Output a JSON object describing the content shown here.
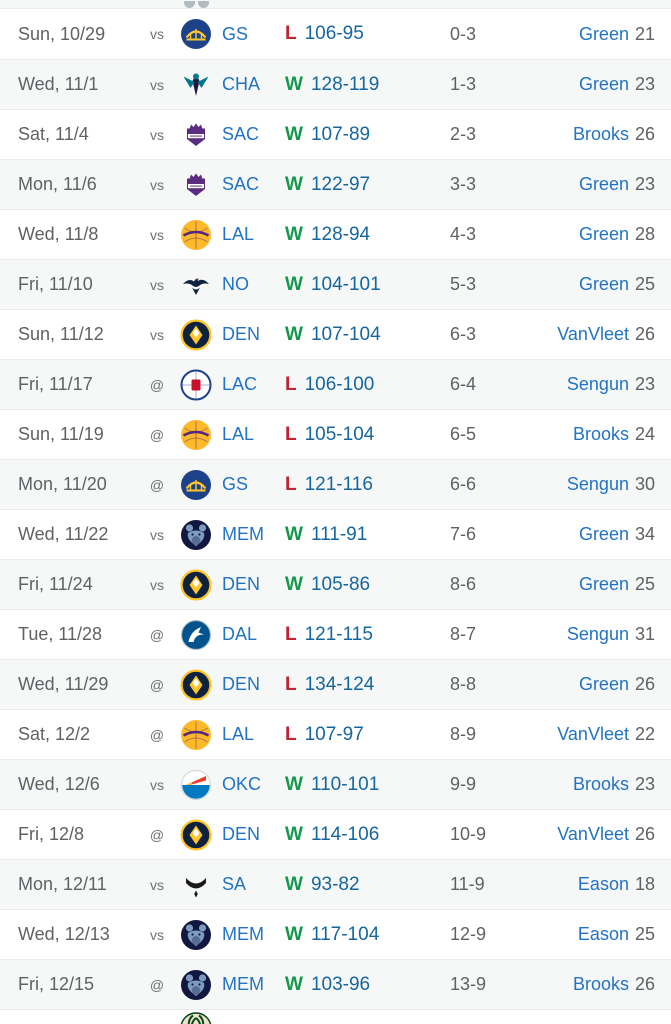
{
  "page": {
    "description": "NBA team schedule results table",
    "home_away_labels": {
      "home": "vs",
      "away": "@"
    }
  },
  "colors": {
    "link_blue": "#2273c4",
    "score_blue": "#15669e",
    "win_green": "#12994c",
    "loss_red": "#bf2431",
    "text_gray": "#5f6164",
    "muted_gray": "#6e7073",
    "row_alt_bg": "#f6f7f7",
    "row_border": "#e9eaeb"
  },
  "team_colors": {
    "warriors": {
      "primary": "#1d428a",
      "secondary": "#ffc72c"
    },
    "hornets": {
      "primary": "#00788c",
      "secondary": "#201747"
    },
    "kings": {
      "primary": "#5a2d81",
      "secondary": "#ffffff"
    },
    "lakers": {
      "primary": "#fdb927",
      "secondary": "#552583"
    },
    "pelicans": {
      "primary": "#0c2340",
      "secondary": "#c8102e"
    },
    "nuggets": {
      "primary": "#0e2240",
      "secondary": "#fec524"
    },
    "clippers": {
      "primary": "#c8102e",
      "secondary": "#1d428a"
    },
    "grizzlies": {
      "primary": "#12173f",
      "secondary": "#7d9bc1"
    },
    "mavericks": {
      "primary": "#00538c",
      "secondary": "#ffffff"
    },
    "thunder": {
      "primary": "#007ac1",
      "secondary": "#ef3b24"
    },
    "spurs": {
      "primary": "#1a1a1a",
      "secondary": "#c4ced4"
    },
    "bucks": {
      "primary": "#00471b",
      "secondary": "#eee1c6"
    }
  },
  "partial_bottom": {
    "logo": "bucks",
    "icon": "bucks-logo"
  },
  "games": [
    {
      "date": "Sun, 10/29",
      "home_away": "vs",
      "opponent": "GS",
      "logo": "warriors",
      "result": "L",
      "score": "106-95",
      "record": "0-3",
      "leader": "Green",
      "leader_points": "21"
    },
    {
      "date": "Wed, 11/1",
      "home_away": "vs",
      "opponent": "CHA",
      "logo": "hornets",
      "result": "W",
      "score": "128-119",
      "record": "1-3",
      "leader": "Green",
      "leader_points": "23"
    },
    {
      "date": "Sat, 11/4",
      "home_away": "vs",
      "opponent": "SAC",
      "logo": "kings",
      "result": "W",
      "score": "107-89",
      "record": "2-3",
      "leader": "Brooks",
      "leader_points": "26"
    },
    {
      "date": "Mon, 11/6",
      "home_away": "vs",
      "opponent": "SAC",
      "logo": "kings",
      "result": "W",
      "score": "122-97",
      "record": "3-3",
      "leader": "Green",
      "leader_points": "23"
    },
    {
      "date": "Wed, 11/8",
      "home_away": "vs",
      "opponent": "LAL",
      "logo": "lakers",
      "result": "W",
      "score": "128-94",
      "record": "4-3",
      "leader": "Green",
      "leader_points": "28"
    },
    {
      "date": "Fri, 11/10",
      "home_away": "vs",
      "opponent": "NO",
      "logo": "pelicans",
      "result": "W",
      "score": "104-101",
      "record": "5-3",
      "leader": "Green",
      "leader_points": "25"
    },
    {
      "date": "Sun, 11/12",
      "home_away": "vs",
      "opponent": "DEN",
      "logo": "nuggets",
      "result": "W",
      "score": "107-104",
      "record": "6-3",
      "leader": "VanVleet",
      "leader_points": "26"
    },
    {
      "date": "Fri, 11/17",
      "home_away": "@",
      "opponent": "LAC",
      "logo": "clippers",
      "result": "L",
      "score": "106-100",
      "record": "6-4",
      "leader": "Sengun",
      "leader_points": "23"
    },
    {
      "date": "Sun, 11/19",
      "home_away": "@",
      "opponent": "LAL",
      "logo": "lakers",
      "result": "L",
      "score": "105-104",
      "record": "6-5",
      "leader": "Brooks",
      "leader_points": "24"
    },
    {
      "date": "Mon, 11/20",
      "home_away": "@",
      "opponent": "GS",
      "logo": "warriors",
      "result": "L",
      "score": "121-116",
      "record": "6-6",
      "leader": "Sengun",
      "leader_points": "30"
    },
    {
      "date": "Wed, 11/22",
      "home_away": "vs",
      "opponent": "MEM",
      "logo": "grizzlies",
      "result": "W",
      "score": "111-91",
      "record": "7-6",
      "leader": "Green",
      "leader_points": "34"
    },
    {
      "date": "Fri, 11/24",
      "home_away": "vs",
      "opponent": "DEN",
      "logo": "nuggets",
      "result": "W",
      "score": "105-86",
      "record": "8-6",
      "leader": "Green",
      "leader_points": "25"
    },
    {
      "date": "Tue, 11/28",
      "home_away": "@",
      "opponent": "DAL",
      "logo": "mavericks",
      "result": "L",
      "score": "121-115",
      "record": "8-7",
      "leader": "Sengun",
      "leader_points": "31"
    },
    {
      "date": "Wed, 11/29",
      "home_away": "@",
      "opponent": "DEN",
      "logo": "nuggets",
      "result": "L",
      "score": "134-124",
      "record": "8-8",
      "leader": "Green",
      "leader_points": "26"
    },
    {
      "date": "Sat, 12/2",
      "home_away": "@",
      "opponent": "LAL",
      "logo": "lakers",
      "result": "L",
      "score": "107-97",
      "record": "8-9",
      "leader": "VanVleet",
      "leader_points": "22"
    },
    {
      "date": "Wed, 12/6",
      "home_away": "vs",
      "opponent": "OKC",
      "logo": "thunder",
      "result": "W",
      "score": "110-101",
      "record": "9-9",
      "leader": "Brooks",
      "leader_points": "23"
    },
    {
      "date": "Fri, 12/8",
      "home_away": "@",
      "opponent": "DEN",
      "logo": "nuggets",
      "result": "W",
      "score": "114-106",
      "record": "10-9",
      "leader": "VanVleet",
      "leader_points": "26"
    },
    {
      "date": "Mon, 12/11",
      "home_away": "vs",
      "opponent": "SA",
      "logo": "spurs",
      "result": "W",
      "score": "93-82",
      "record": "11-9",
      "leader": "Eason",
      "leader_points": "18"
    },
    {
      "date": "Wed, 12/13",
      "home_away": "vs",
      "opponent": "MEM",
      "logo": "grizzlies",
      "result": "W",
      "score": "117-104",
      "record": "12-9",
      "leader": "Eason",
      "leader_points": "25"
    },
    {
      "date": "Fri, 12/15",
      "home_away": "@",
      "opponent": "MEM",
      "logo": "grizzlies",
      "result": "W",
      "score": "103-96",
      "record": "13-9",
      "leader": "Brooks",
      "leader_points": "26"
    }
  ]
}
